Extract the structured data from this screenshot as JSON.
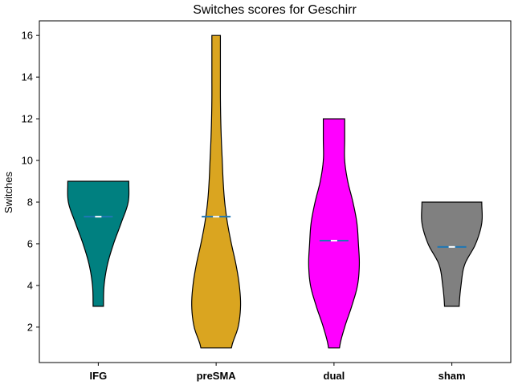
{
  "chart_data": {
    "type": "violin",
    "title": "Switches scores for Geschirr",
    "xlabel": "",
    "ylabel": "Switches",
    "ylim": [
      0.3,
      16.7
    ],
    "yticks": [
      2,
      4,
      6,
      8,
      10,
      12,
      14,
      16
    ],
    "grid": false,
    "categories": [
      "IFG",
      "preSMA",
      "dual",
      "sham"
    ],
    "series": [
      {
        "category": "IFG",
        "color": "#008080",
        "min": 3,
        "max": 9,
        "mean": 7.3,
        "profile": [
          [
            3,
            0.17
          ],
          [
            4,
            0.19
          ],
          [
            5,
            0.3
          ],
          [
            6,
            0.5
          ],
          [
            7,
            0.75
          ],
          [
            8,
            0.98
          ],
          [
            9,
            1.0
          ]
        ]
      },
      {
        "category": "preSMA",
        "color": "#DAA520",
        "min": 1,
        "max": 16,
        "mean": 7.3,
        "profile": [
          [
            1,
            0.5
          ],
          [
            2,
            0.72
          ],
          [
            3,
            0.8
          ],
          [
            4,
            0.76
          ],
          [
            5,
            0.65
          ],
          [
            6,
            0.5
          ],
          [
            7,
            0.37
          ],
          [
            8,
            0.28
          ],
          [
            9,
            0.23
          ],
          [
            10,
            0.2
          ],
          [
            11,
            0.17
          ],
          [
            12,
            0.15
          ],
          [
            13,
            0.14
          ],
          [
            14,
            0.14
          ],
          [
            15,
            0.14
          ],
          [
            16,
            0.14
          ]
        ]
      },
      {
        "category": "dual",
        "color": "#FF00FF",
        "min": 1,
        "max": 12,
        "mean": 6.15,
        "profile": [
          [
            1,
            0.18
          ],
          [
            2,
            0.35
          ],
          [
            3,
            0.58
          ],
          [
            4,
            0.77
          ],
          [
            5,
            0.83
          ],
          [
            6,
            0.8
          ],
          [
            7,
            0.75
          ],
          [
            8,
            0.62
          ],
          [
            9,
            0.45
          ],
          [
            10,
            0.35
          ],
          [
            11,
            0.35
          ],
          [
            12,
            0.35
          ]
        ]
      },
      {
        "category": "sham",
        "color": "#808080",
        "min": 3,
        "max": 8,
        "mean": 5.85,
        "profile": [
          [
            3,
            0.24
          ],
          [
            4,
            0.3
          ],
          [
            5,
            0.42
          ],
          [
            6,
            0.78
          ],
          [
            7,
            0.98
          ],
          [
            8,
            0.98
          ]
        ]
      }
    ]
  }
}
